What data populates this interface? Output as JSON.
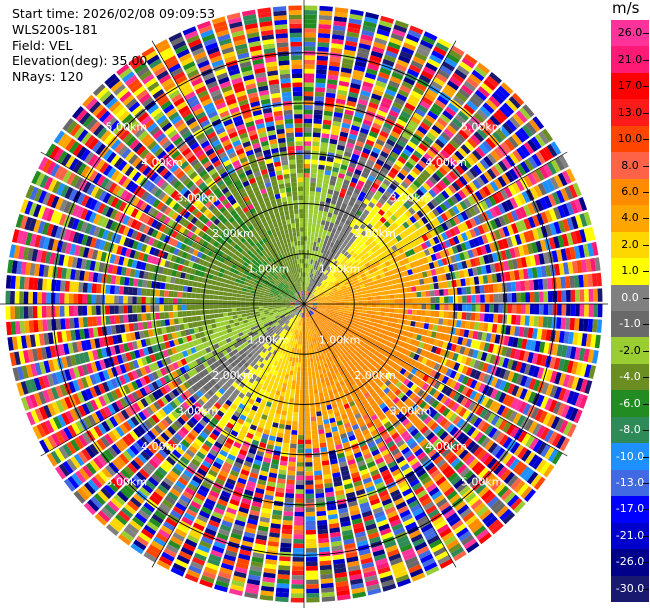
{
  "header": {
    "start_time": "Start time: 2026/02/08 09:09:53",
    "instrument": "WLS200s-181",
    "field": "Field: VEL",
    "elevation": "Elevation(deg): 35.00",
    "nrays": "NRays: 120"
  },
  "chart_data": {
    "type": "heatmap",
    "projection": "polar-ppi",
    "field": "VEL",
    "units": "m/s",
    "n_rays": 120,
    "elevation_deg": 35.0,
    "range_rings_km": [
      1.0,
      2.0,
      3.0,
      4.0,
      5.0
    ],
    "ring_labels": [
      "1.00km",
      "2.00km",
      "3.00km",
      "4.00km",
      "5.00km"
    ],
    "max_range_km": 5.0,
    "colorbar": {
      "unit_label": "m/s",
      "ticks": [
        "26.0",
        "21.0",
        "17.0",
        "13.0",
        "10.0",
        "8.0",
        "6.0",
        "4.0",
        "2.0",
        "1.0",
        "0.0",
        "-1.0",
        "-2.0",
        "-4.0",
        "-6.0",
        "-8.0",
        "-10.0",
        "-13.0",
        "-17.0",
        "-21.0",
        "-26.0",
        "-30.0"
      ],
      "colors": [
        "#ff3399",
        "#ff1a75",
        "#ff0000",
        "#ff1a1a",
        "#ff4500",
        "#ff6347",
        "#ff8c00",
        "#ffa500",
        "#ffd700",
        "#ffff00",
        "#808080",
        "#696969",
        "#9acd32",
        "#6b8e23",
        "#228b22",
        "#2e8b57",
        "#1e90ff",
        "#4169e1",
        "#0000ff",
        "#0000cd",
        "#00008b",
        "#191970"
      ]
    }
  }
}
